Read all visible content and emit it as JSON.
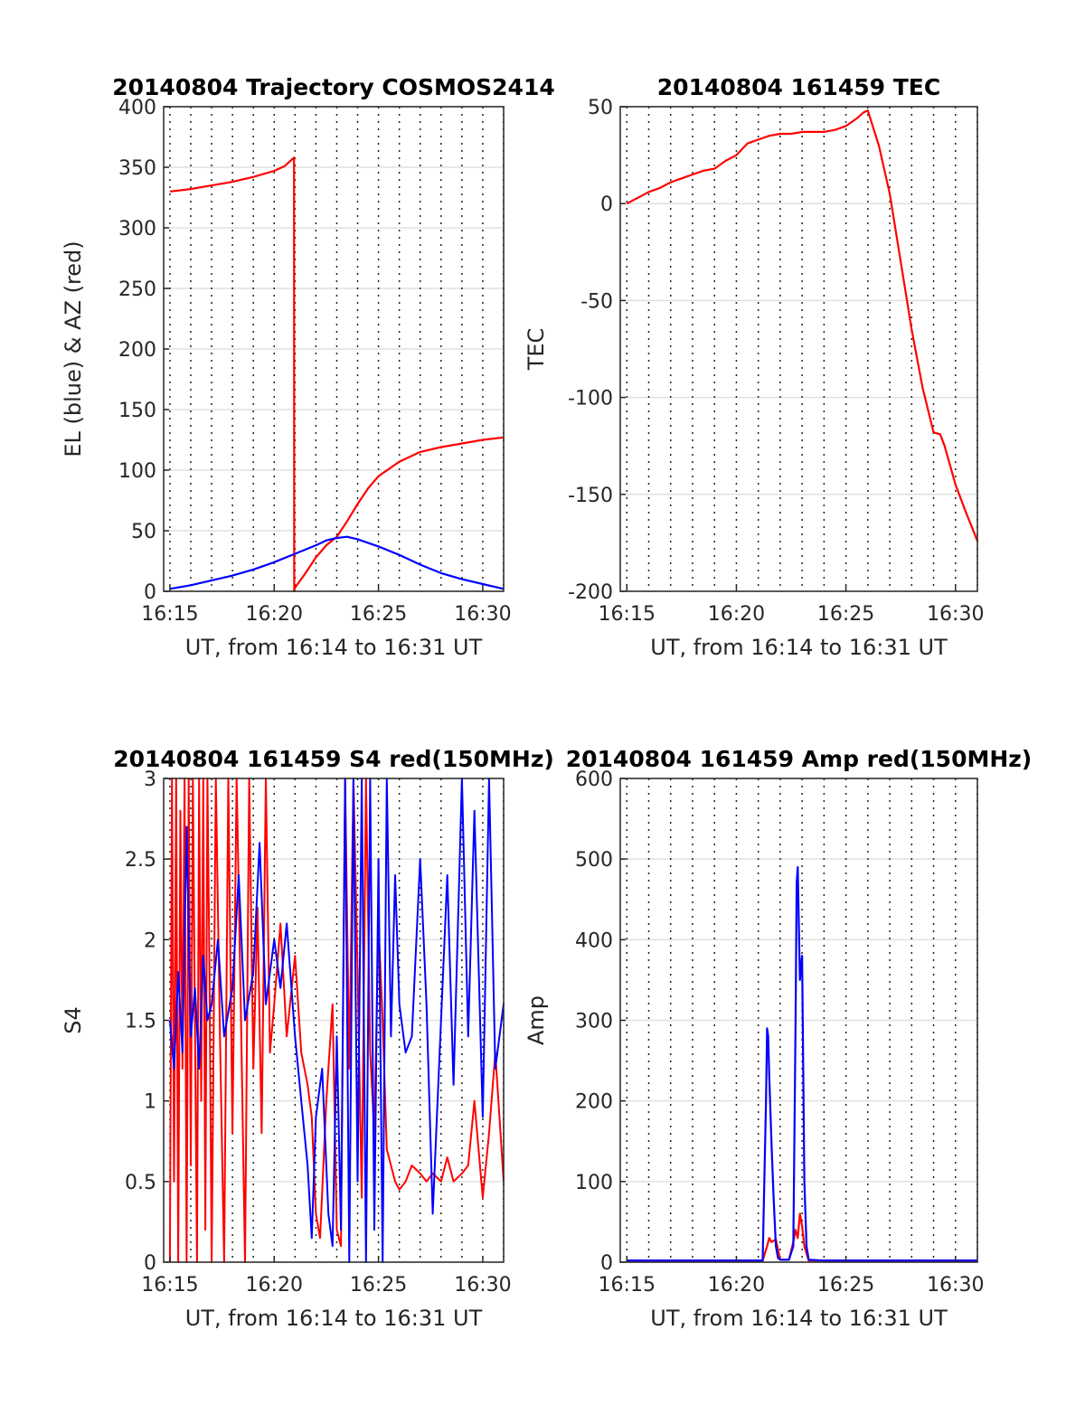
{
  "chart_data": [
    {
      "type": "line",
      "title": "20140804 Trajectory COSMOS2414",
      "xlabel": "UT, from 16:14 to 16:31 UT",
      "ylabel": "EL (blue) & AZ (red)",
      "x_unit": "minutes after 16:00 UT",
      "xlim": [
        14.7,
        31.0
      ],
      "ylim": [
        0,
        400
      ],
      "xticks": [
        15,
        20,
        25,
        30
      ],
      "xtick_labels": [
        "16:15",
        "16:20",
        "16:25",
        "16:30"
      ],
      "yticks": [
        0,
        50,
        100,
        150,
        200,
        250,
        300,
        350,
        400
      ],
      "ytick_labels": [
        "0",
        "50",
        "100",
        "150",
        "200",
        "250",
        "300",
        "350",
        "400"
      ],
      "grid": "x dotted, y solid light",
      "series": [
        {
          "color": "#ff0000",
          "x": [
            15.0,
            16.0,
            17.0,
            18.0,
            19.0,
            20.0,
            20.5,
            20.95,
            20.96,
            21.0,
            21.5,
            22.0,
            22.5,
            23.0,
            23.5,
            24.0,
            24.5,
            25.0,
            26.0,
            27.0,
            28.0,
            29.0,
            30.0,
            31.0
          ],
          "y": [
            330,
            332,
            335,
            338,
            342,
            347,
            351,
            358,
            0,
            3,
            15,
            28,
            38,
            45,
            58,
            72,
            85,
            95,
            107,
            115,
            119,
            122,
            125,
            127
          ]
        },
        {
          "color": "#0000ff",
          "x": [
            15.0,
            16.0,
            17.0,
            18.0,
            19.0,
            20.0,
            21.0,
            22.0,
            22.5,
            23.0,
            23.5,
            24.0,
            25.0,
            26.0,
            27.0,
            28.0,
            29.0,
            30.0,
            31.0
          ],
          "y": [
            2,
            5,
            9,
            13,
            18,
            24,
            31,
            38,
            42,
            44,
            45,
            43,
            37,
            30,
            22,
            15,
            10,
            6,
            2
          ]
        }
      ]
    },
    {
      "type": "line",
      "title": "20140804 161459 TEC",
      "xlabel": "UT, from 16:14 to 16:31 UT",
      "ylabel": "TEC",
      "x_unit": "minutes after 16:00 UT",
      "xlim": [
        14.7,
        31.0
      ],
      "ylim": [
        -200,
        50
      ],
      "xticks": [
        15,
        20,
        25,
        30
      ],
      "xtick_labels": [
        "16:15",
        "16:20",
        "16:25",
        "16:30"
      ],
      "yticks": [
        -200,
        -150,
        -100,
        -50,
        0,
        50
      ],
      "ytick_labels": [
        "-200",
        "-150",
        "-100",
        "-50",
        "0",
        "50"
      ],
      "grid": "x dotted, y solid light",
      "series": [
        {
          "color": "#ff0000",
          "x": [
            15.0,
            15.5,
            16.0,
            16.5,
            17.0,
            17.5,
            18.0,
            18.5,
            19.0,
            19.5,
            20.0,
            20.5,
            21.0,
            21.5,
            22.0,
            22.5,
            23.0,
            23.5,
            24.0,
            24.5,
            25.0,
            25.5,
            25.8,
            26.0,
            26.5,
            27.0,
            27.5,
            28.0,
            28.5,
            29.0,
            29.3,
            29.5,
            30.0,
            30.5,
            31.0
          ],
          "y": [
            0,
            3,
            6,
            8,
            11,
            13,
            15,
            17,
            18,
            22,
            25,
            31,
            33,
            35,
            36,
            36,
            37,
            37,
            37,
            38,
            40,
            44,
            47,
            48,
            30,
            5,
            -30,
            -65,
            -95,
            -118,
            -119,
            -125,
            -145,
            -160,
            -174
          ]
        }
      ]
    },
    {
      "type": "line",
      "title": "20140804 161459 S4 red(150MHz)",
      "xlabel": "UT, from 16:14 to 16:31 UT",
      "ylabel": "S4",
      "x_unit": "minutes after 16:00 UT",
      "xlim": [
        14.7,
        31.0
      ],
      "ylim": [
        0,
        3
      ],
      "xticks": [
        15,
        20,
        25,
        30
      ],
      "xtick_labels": [
        "16:15",
        "16:20",
        "16:25",
        "16:30"
      ],
      "yticks": [
        0,
        0.5,
        1,
        1.5,
        2,
        2.5,
        3
      ],
      "ytick_labels": [
        "0",
        "0.5",
        "1",
        "1.5",
        "2",
        "2.5",
        "3"
      ],
      "grid": "x dotted, y solid light",
      "series": [
        {
          "color": "#ff0000",
          "x": [
            15.0,
            15.1,
            15.2,
            15.3,
            15.4,
            15.5,
            15.6,
            15.7,
            15.8,
            15.9,
            16.0,
            16.1,
            16.2,
            16.3,
            16.4,
            16.5,
            16.6,
            16.7,
            16.8,
            16.9,
            17.0,
            17.2,
            17.4,
            17.6,
            17.8,
            18.0,
            18.2,
            18.4,
            18.6,
            18.8,
            19.0,
            19.2,
            19.4,
            19.6,
            19.8,
            20.0,
            20.3,
            20.6,
            21.0,
            21.3,
            21.6,
            21.8,
            22.0,
            22.2,
            22.5,
            22.8,
            23.0,
            23.2,
            23.4,
            23.6,
            23.8,
            24.0,
            24.2,
            24.4,
            24.6,
            24.8,
            25.0,
            25.2,
            25.4,
            25.6,
            25.8,
            26.0,
            26.3,
            26.6,
            27.0,
            27.3,
            27.6,
            28.0,
            28.3,
            28.6,
            29.0,
            29.3,
            29.6,
            30.0,
            30.3,
            30.6,
            31.0
          ],
          "y": [
            0,
            3,
            0.5,
            3,
            0,
            2.8,
            1.2,
            3,
            0,
            3,
            0.6,
            3,
            1.5,
            0,
            3,
            1.0,
            3,
            0.2,
            3,
            1.8,
            0,
            3,
            1.4,
            0,
            3,
            0.8,
            3,
            1.6,
            0,
            3,
            1.2,
            2.2,
            0.8,
            3,
            1.3,
            1.6,
            2.1,
            1.4,
            1.9,
            1.3,
            1.1,
            0.9,
            0.3,
            0.15,
            1.0,
            1.6,
            0.2,
            0.1,
            3,
            1.2,
            3,
            1.8,
            0.4,
            3,
            1.3,
            0.8,
            2.1,
            1.5,
            0.7,
            0.6,
            0.5,
            0.45,
            0.5,
            0.6,
            0.55,
            0.5,
            0.55,
            0.5,
            0.65,
            0.5,
            0.55,
            0.6,
            1.0,
            0.4,
            0.8,
            1.3,
            0.5
          ]
        },
        {
          "color": "#0000ff",
          "x": [
            15.0,
            15.2,
            15.4,
            15.6,
            15.8,
            16.0,
            16.2,
            16.4,
            16.6,
            16.8,
            17.0,
            17.3,
            17.6,
            18.0,
            18.3,
            18.6,
            19.0,
            19.3,
            19.6,
            20.0,
            20.3,
            20.6,
            21.0,
            21.3,
            21.6,
            21.8,
            22.0,
            22.3,
            22.6,
            22.8,
            23.0,
            23.2,
            23.4,
            23.6,
            23.8,
            24.0,
            24.2,
            24.4,
            24.6,
            24.8,
            25.0,
            25.2,
            25.4,
            25.6,
            25.8,
            26.0,
            26.3,
            26.6,
            27.0,
            27.3,
            27.6,
            28.0,
            28.3,
            28.6,
            29.0,
            29.3,
            29.6,
            30.0,
            30.3,
            30.6,
            31.0
          ],
          "y": [
            1.5,
            1.2,
            1.8,
            1.3,
            2.7,
            1.4,
            1.7,
            1.2,
            1.9,
            1.5,
            1.6,
            2.0,
            1.4,
            1.7,
            2.4,
            1.5,
            1.8,
            2.6,
            1.6,
            2.0,
            1.7,
            2.1,
            1.4,
            1.0,
            0.6,
            0.15,
            0.9,
            1.2,
            0.3,
            0.1,
            1.4,
            0.2,
            3,
            0,
            3,
            0.5,
            3,
            0,
            3,
            0.2,
            2.5,
            0,
            3,
            1.4,
            2.4,
            1.6,
            1.3,
            1.4,
            2.5,
            1.6,
            0.3,
            1.5,
            2.4,
            1.1,
            3,
            1.4,
            2.8,
            0.9,
            3,
            1.2,
            1.6
          ]
        }
      ]
    },
    {
      "type": "line",
      "title": "20140804 161459 Amp red(150MHz)",
      "xlabel": "UT, from 16:14 to 16:31 UT",
      "ylabel": "Amp",
      "x_unit": "minutes after 16:00 UT",
      "xlim": [
        14.7,
        31.0
      ],
      "ylim": [
        0,
        600
      ],
      "xticks": [
        15,
        20,
        25,
        30
      ],
      "xtick_labels": [
        "16:15",
        "16:20",
        "16:25",
        "16:30"
      ],
      "yticks": [
        0,
        100,
        200,
        300,
        400,
        500,
        600
      ],
      "ytick_labels": [
        "0",
        "100",
        "200",
        "300",
        "400",
        "500",
        "600"
      ],
      "grid": "x dotted, y solid light",
      "series": [
        {
          "color": "#ff0000",
          "x": [
            15.0,
            16.0,
            18.0,
            20.0,
            21.2,
            21.4,
            21.5,
            21.6,
            21.8,
            22.0,
            22.4,
            22.6,
            22.7,
            22.8,
            22.9,
            23.0,
            23.1,
            23.3,
            24.0,
            26.0,
            28.0,
            30.0,
            31.0
          ],
          "y": [
            2,
            2,
            2,
            2,
            2,
            20,
            30,
            25,
            28,
            3,
            3,
            25,
            40,
            30,
            60,
            45,
            20,
            2,
            2,
            2,
            2,
            2,
            2
          ]
        },
        {
          "color": "#0000ff",
          "x": [
            15.0,
            16.0,
            18.0,
            20.0,
            21.2,
            21.35,
            21.4,
            21.45,
            21.5,
            21.6,
            21.7,
            21.8,
            21.9,
            22.0,
            22.4,
            22.6,
            22.7,
            22.75,
            22.8,
            22.85,
            22.9,
            23.0,
            23.1,
            23.2,
            23.3,
            24.0,
            26.0,
            28.0,
            30.0,
            31.0
          ],
          "y": [
            2,
            2,
            2,
            2,
            2,
            200,
            290,
            280,
            230,
            150,
            80,
            20,
            5,
            3,
            3,
            20,
            300,
            470,
            490,
            420,
            350,
            380,
            100,
            20,
            3,
            2,
            2,
            2,
            2,
            2
          ]
        }
      ]
    }
  ]
}
